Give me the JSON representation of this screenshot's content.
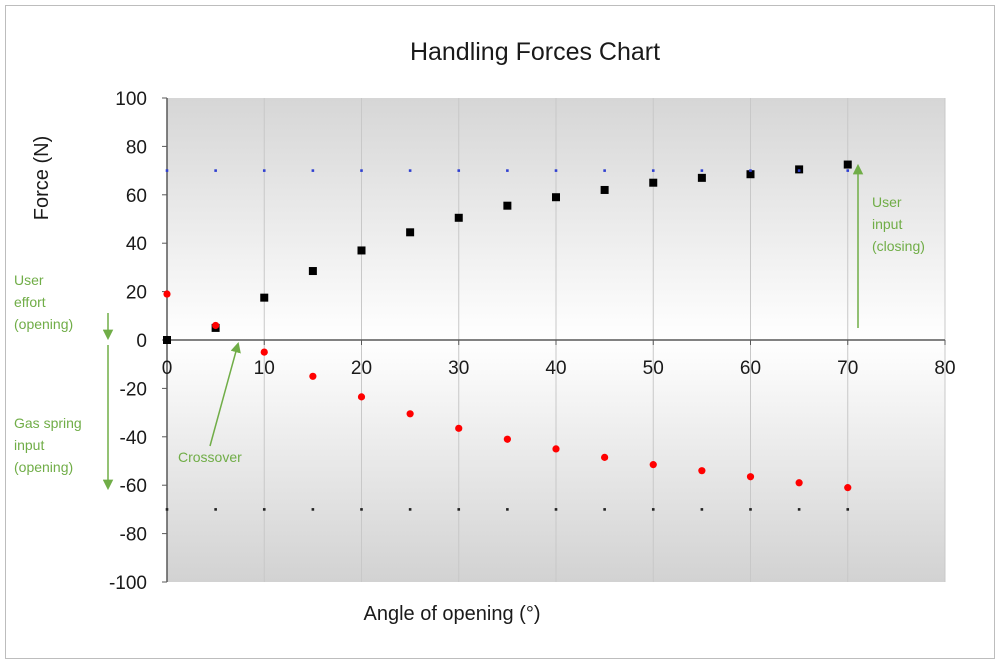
{
  "chart_data": {
    "type": "scatter",
    "title": "Handling Forces Chart",
    "xlabel": "Angle of opening (°)",
    "ylabel": "Force (N)",
    "xlim": [
      0,
      80
    ],
    "ylim": [
      -100,
      100
    ],
    "x_ticks": [
      0,
      10,
      20,
      30,
      40,
      50,
      60,
      70,
      80
    ],
    "y_ticks": [
      -100,
      -80,
      -60,
      -40,
      -20,
      0,
      20,
      40,
      60,
      80,
      100
    ],
    "grid": "vertical",
    "series": [
      {
        "color": "#000000",
        "marker": "square",
        "x": [
          0,
          5,
          10,
          15,
          20,
          25,
          30,
          35,
          40,
          45,
          50,
          55,
          60,
          65,
          70
        ],
        "y": [
          0,
          5,
          17.5,
          28.5,
          37,
          44.5,
          50.5,
          55.5,
          59,
          62,
          65,
          67,
          68.5,
          70.5,
          72.5
        ]
      },
      {
        "color": "#ff0000",
        "marker": "circle",
        "x": [
          0,
          5,
          10,
          15,
          20,
          25,
          30,
          35,
          40,
          45,
          50,
          55,
          60,
          65,
          70
        ],
        "y": [
          19,
          6,
          -5,
          -15,
          -23.5,
          -30.5,
          -36.5,
          -41,
          -45,
          -48.5,
          -51.5,
          -54,
          -56.5,
          -59,
          -61
        ]
      },
      {
        "color": "#2f3fd0",
        "marker": "dot",
        "x": [
          0,
          5,
          10,
          15,
          20,
          25,
          30,
          35,
          40,
          45,
          50,
          55,
          60,
          65,
          70
        ],
        "y": [
          70,
          70,
          70,
          70,
          70,
          70,
          70,
          70,
          70,
          70,
          70,
          70,
          70,
          70,
          70
        ]
      },
      {
        "color": "#222222",
        "marker": "dot",
        "x": [
          0,
          5,
          10,
          15,
          20,
          25,
          30,
          35,
          40,
          45,
          50,
          55,
          60,
          65,
          70
        ],
        "y": [
          -70,
          -70,
          -70,
          -70,
          -70,
          -70,
          -70,
          -70,
          -70,
          -70,
          -70,
          -70,
          -70,
          -70,
          -70
        ]
      }
    ],
    "annotations": [
      {
        "id": "user-effort",
        "lines": [
          "User",
          "effort",
          "(opening)"
        ],
        "color": "#70ad47"
      },
      {
        "id": "gas-spring",
        "lines": [
          "Gas spring",
          "input",
          "(opening)"
        ],
        "color": "#70ad47"
      },
      {
        "id": "crossover",
        "lines": [
          "Crossover"
        ],
        "color": "#70ad47"
      },
      {
        "id": "user-closing",
        "lines": [
          "User",
          "input",
          "(closing)"
        ],
        "color": "#70ad47"
      }
    ]
  }
}
